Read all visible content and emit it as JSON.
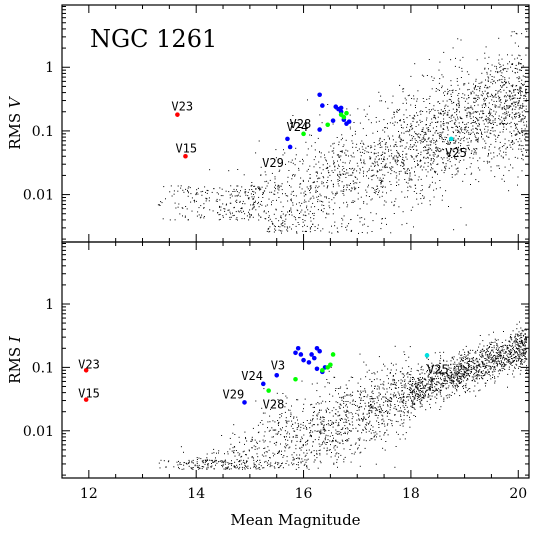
{
  "chart_data": [
    {
      "type": "scatter",
      "title": "NGC 1261",
      "ylabel_prefix": "RMS ",
      "ylabel_band": "V",
      "xlabel": "",
      "xlim": [
        11.5,
        20.2
      ],
      "ylim": [
        0.0018,
        9.5
      ],
      "yscale": "log",
      "yticks": [
        1,
        0.1,
        0.01
      ],
      "ytick_labels": [
        "1",
        "0.1",
        "0.01"
      ],
      "series": [
        {
          "color": "#ff0000",
          "points": [
            [
              13.65,
              0.18
            ],
            [
              13.8,
              0.04
            ]
          ]
        },
        {
          "color": "#0000ff",
          "points": [
            [
              15.7,
              0.075
            ],
            [
              15.75,
              0.056
            ],
            [
              16.3,
              0.37
            ],
            [
              16.35,
              0.25
            ],
            [
              16.55,
              0.145
            ],
            [
              16.6,
              0.24
            ],
            [
              16.65,
              0.22
            ],
            [
              16.7,
              0.2
            ],
            [
              16.75,
              0.15
            ],
            [
              16.8,
              0.13
            ],
            [
              16.85,
              0.14
            ],
            [
              16.3,
              0.105
            ],
            [
              16.7,
              0.23
            ]
          ]
        },
        {
          "color": "#00ff00",
          "points": [
            [
              16.0,
              0.09
            ],
            [
              16.45,
              0.125
            ],
            [
              16.7,
              0.18
            ],
            [
              16.8,
              0.19
            ],
            [
              16.75,
              0.165
            ]
          ]
        },
        {
          "color": "#00e0e0",
          "points": [
            [
              18.75,
              0.075
            ]
          ]
        }
      ],
      "annotations": [
        {
          "text": "V23",
          "x": 13.65,
          "y": 0.18
        },
        {
          "text": "V15",
          "x": 13.8,
          "y": 0.04
        },
        {
          "text": "V24",
          "x": 15.72,
          "y": 0.075
        },
        {
          "text": "V28",
          "x": 16.0,
          "y": 0.09
        },
        {
          "text": "V29",
          "x": 15.75,
          "y": 0.056
        },
        {
          "text": "V25",
          "x": 18.75,
          "y": 0.075
        }
      ]
    },
    {
      "type": "scatter",
      "title": "",
      "ylabel_prefix": "RMS ",
      "ylabel_band": "I",
      "xlabel": "Mean Magnitude",
      "xlim": [
        11.5,
        20.2
      ],
      "ylim": [
        0.0018,
        9.5
      ],
      "yscale": "log",
      "xticks": [
        12,
        14,
        16,
        18,
        20
      ],
      "xtick_labels": [
        "12",
        "14",
        "16",
        "18",
        "20"
      ],
      "yticks": [
        1,
        0.1,
        0.01
      ],
      "ytick_labels": [
        "1",
        "0.1",
        "0.01"
      ],
      "series": [
        {
          "color": "#ff0000",
          "points": [
            [
              11.95,
              0.09
            ],
            [
              11.95,
              0.031
            ]
          ]
        },
        {
          "color": "#0000ff",
          "points": [
            [
              15.25,
              0.055
            ],
            [
              14.9,
              0.028
            ],
            [
              15.5,
              0.075
            ],
            [
              15.85,
              0.17
            ],
            [
              15.9,
              0.2
            ],
            [
              16.0,
              0.13
            ],
            [
              16.1,
              0.12
            ],
            [
              16.15,
              0.16
            ],
            [
              16.2,
              0.14
            ],
            [
              16.25,
              0.2
            ],
            [
              16.3,
              0.18
            ],
            [
              16.25,
              0.095
            ],
            [
              16.35,
              0.085
            ],
            [
              16.4,
              0.1
            ],
            [
              15.95,
              0.16
            ]
          ]
        },
        {
          "color": "#00ff00",
          "points": [
            [
              15.35,
              0.043
            ],
            [
              15.85,
              0.065
            ],
            [
              16.35,
              0.09
            ],
            [
              16.45,
              0.1
            ],
            [
              16.5,
              0.11
            ],
            [
              16.55,
              0.16
            ]
          ]
        },
        {
          "color": "#00e0e0",
          "points": [
            [
              18.3,
              0.155
            ]
          ]
        }
      ],
      "annotations": [
        {
          "text": "V23",
          "x": 11.95,
          "y": 0.09
        },
        {
          "text": "V15",
          "x": 11.95,
          "y": 0.031
        },
        {
          "text": "V24",
          "x": 15.25,
          "y": 0.055
        },
        {
          "text": "V3",
          "x": 15.5,
          "y": 0.075
        },
        {
          "text": "V29",
          "x": 14.9,
          "y": 0.028
        },
        {
          "text": "V28",
          "x": 15.35,
          "y": 0.043
        },
        {
          "text": "V25",
          "x": 18.3,
          "y": 0.155
        }
      ]
    }
  ]
}
